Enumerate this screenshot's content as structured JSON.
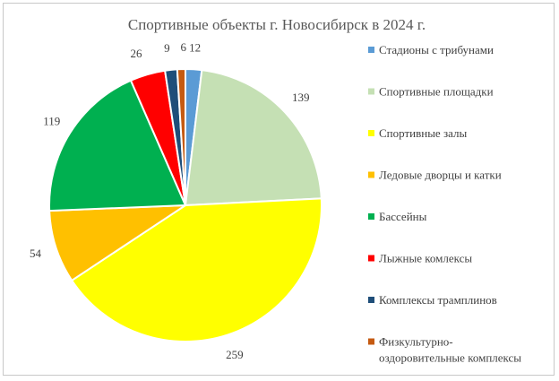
{
  "chart_data": {
    "type": "pie",
    "title": "Спортивные объекты г. Новосибирск в 2024 г.",
    "categories": [
      "Стадионы с трибунами",
      "Спортивные площадки",
      "Спортивные залы",
      "Ледовые дворцы и катки",
      "Бассейны",
      "Лыжные комлексы",
      "Комплексы трамплинов",
      "Физкультурно-оздоровительные комплексы"
    ],
    "legend_lines": [
      [
        "Стадионы с трибунами"
      ],
      [
        "Спортивные площадки"
      ],
      [
        "Спортивные залы"
      ],
      [
        "Ледовые дворцы и катки"
      ],
      [
        "Бассейны"
      ],
      [
        "Лыжные комлексы"
      ],
      [
        "Комплексы трамплинов"
      ],
      [
        "Физкультурно-",
        "оздоровительные комплексы"
      ]
    ],
    "values": [
      12,
      139,
      259,
      54,
      119,
      26,
      9,
      6
    ],
    "data_labels": [
      "12",
      "139",
      "259",
      "54",
      "119",
      "26",
      "9",
      "6"
    ],
    "colors": [
      "#5B9BD5",
      "#C5E0B4",
      "#FFFF00",
      "#FFC000",
      "#00B050",
      "#FF0000",
      "#1F4E79",
      "#C55A11"
    ],
    "legend_position": "right",
    "start_angle_deg": 0,
    "direction": "clockwise"
  }
}
